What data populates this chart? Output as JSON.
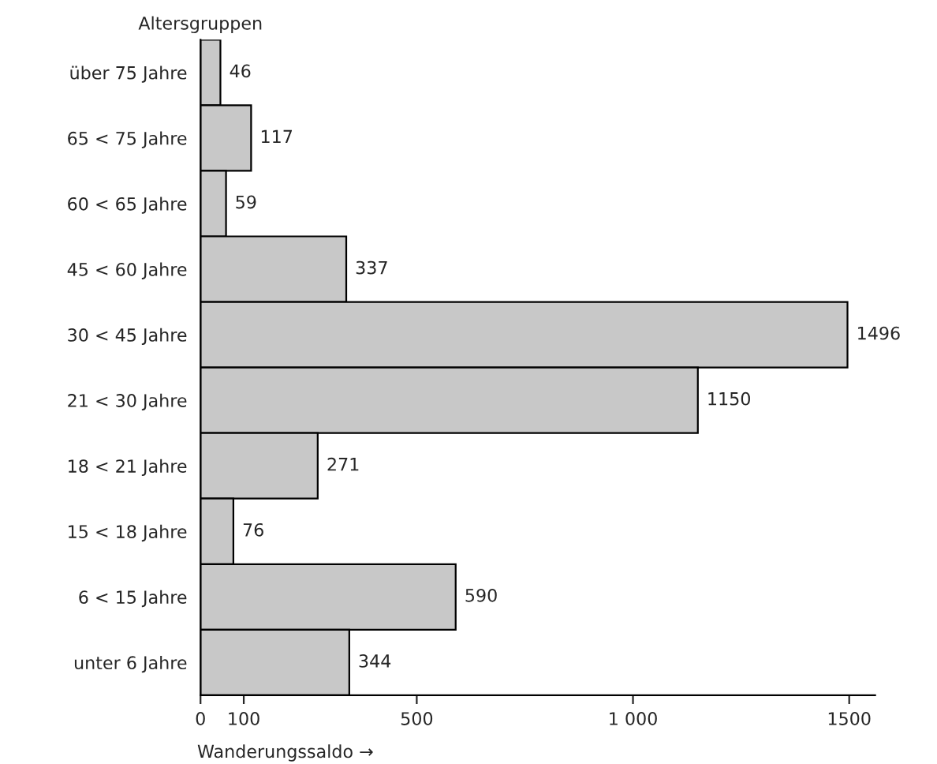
{
  "chart_data": {
    "type": "bar",
    "orientation": "horizontal",
    "ylabel": "Altersgruppen",
    "xlabel": "Wanderungssaldo →",
    "categories": [
      "über 75 Jahre",
      "65 < 75 Jahre",
      "60 < 65 Jahre",
      "45 < 60 Jahre",
      "30 < 45 Jahre",
      "21 < 30 Jahre",
      "18 < 21 Jahre",
      "15 < 18 Jahre",
      "6 < 15 Jahre",
      "unter 6 Jahre"
    ],
    "values": [
      46,
      117,
      59,
      337,
      1496,
      1150,
      271,
      76,
      590,
      344
    ],
    "color": "#c8c8c8",
    "data_labels": true,
    "xlim": [
      0,
      1560
    ],
    "xticks": [
      0,
      100,
      500,
      {
        "value": 1000,
        "label": "1 000"
      },
      1500
    ],
    "grid": false,
    "legend": false
  }
}
